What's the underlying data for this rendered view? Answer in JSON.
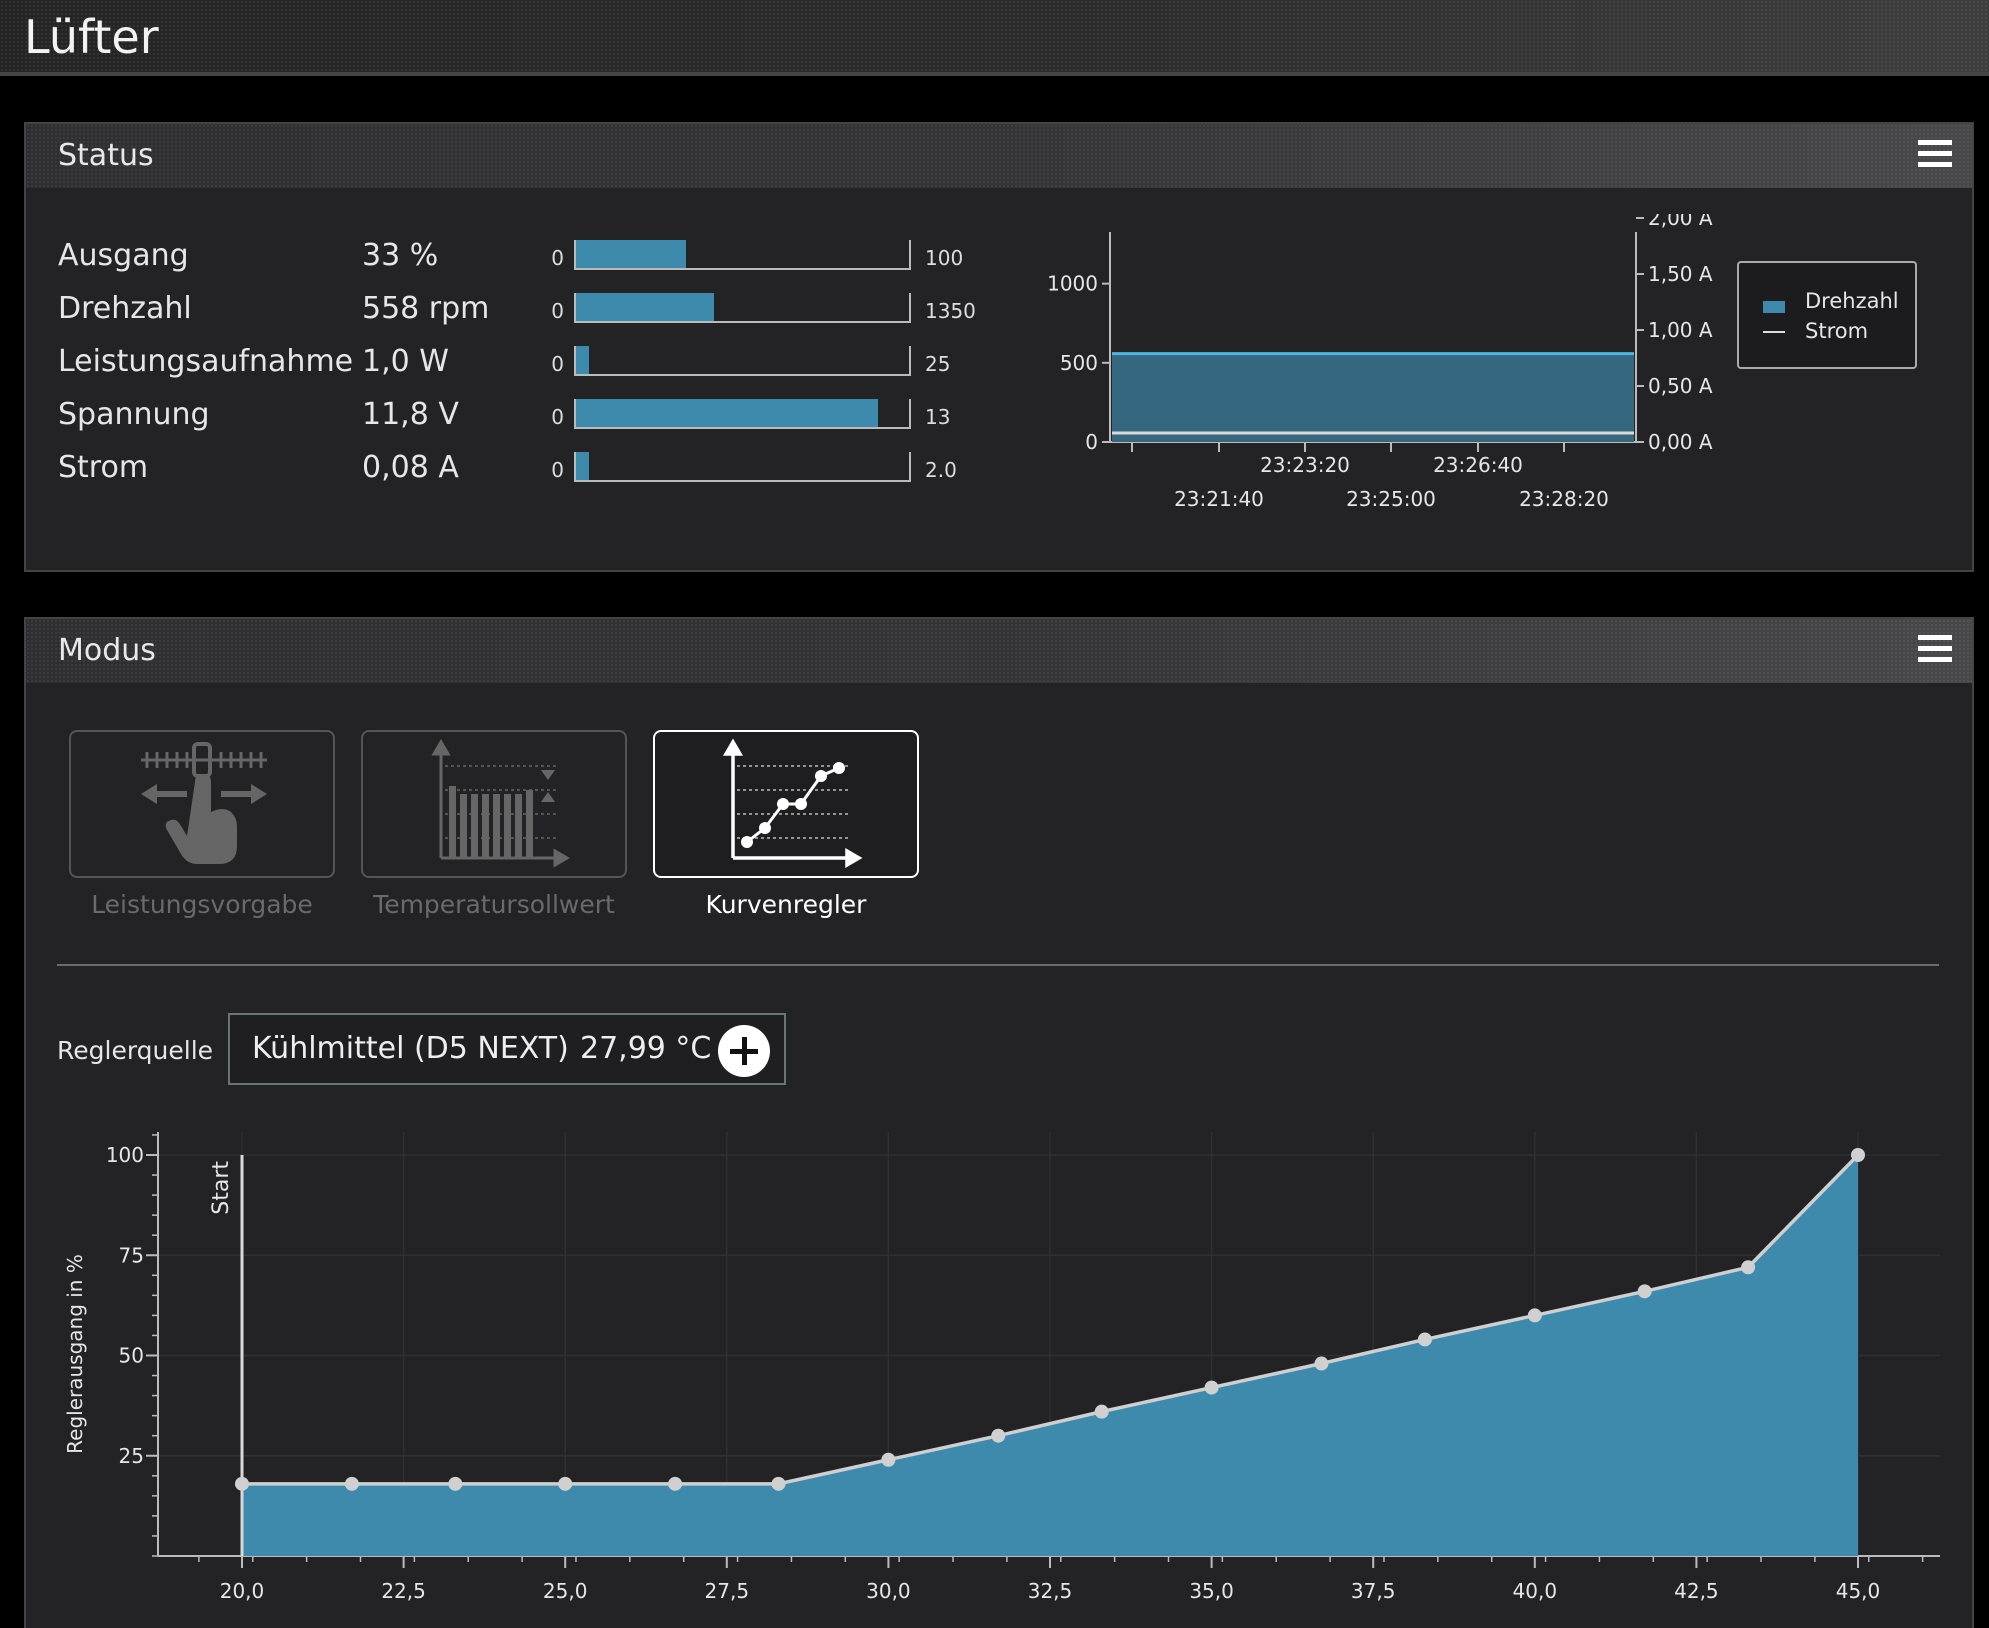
{
  "app": {
    "title": "Lüfter"
  },
  "status": {
    "title": "Status",
    "rows": [
      {
        "label": "Ausgang",
        "value": "33 %",
        "min": "0",
        "max": "100",
        "fraction": 0.33
      },
      {
        "label": "Drehzahl",
        "value": "558 rpm",
        "min": "0",
        "max": "1350",
        "fraction": 0.413
      },
      {
        "label": "Leistungsaufnahme",
        "value": "1,0 W",
        "min": "0",
        "max": "25",
        "fraction": 0.04
      },
      {
        "label": "Spannung",
        "value": "11,8 V",
        "min": "0",
        "max": "13",
        "fraction": 0.908
      },
      {
        "label": "Strom",
        "value": "0,08 A",
        "min": "0",
        "max": "2.0",
        "fraction": 0.04
      }
    ],
    "legend": {
      "series1": "Drehzahl",
      "series2": "Strom"
    },
    "colors": {
      "rpm_fill": "#35677f",
      "rpm_line": "#4fb4e0",
      "current_line": "#d9d9d9"
    }
  },
  "modus": {
    "title": "Modus",
    "tiles": [
      {
        "label": "Leistungsvorgabe",
        "icon": "hand-slider-icon",
        "active": false
      },
      {
        "label": "Temperatursollwert",
        "icon": "bar-chart-setpoint-icon",
        "active": false
      },
      {
        "label": "Kurvenregler",
        "icon": "curve-chart-icon",
        "active": true
      }
    ],
    "source": {
      "label": "Reglerquelle",
      "name": "Kühlmittel (D5 NEXT)",
      "temperature": "27,99 °C",
      "add_icon": "plus-circle-icon"
    }
  },
  "chart_data": [
    {
      "type": "area",
      "series": [
        {
          "name": "Drehzahl",
          "y_axis": "left",
          "values_flat": 558
        },
        {
          "name": "Strom",
          "y_axis": "right",
          "values_flat": 0.08
        }
      ],
      "x_tick_labels": [
        "23:21:40",
        "23:23:20",
        "23:25:00",
        "23:26:40",
        "23:28:20"
      ],
      "y_left_ticks": [
        "0",
        "500",
        "1000"
      ],
      "y_left_range": [
        0,
        1350
      ],
      "y_right_ticks": [
        "0,00 A",
        "0,50 A",
        "1,00 A",
        "1,50 A",
        "2,00 A"
      ],
      "y_right_range": [
        0,
        2
      ],
      "legend": "right"
    },
    {
      "type": "area",
      "ylabel": "Reglerausgang in %",
      "xlim": [
        18.5,
        46.2
      ],
      "ylim": [
        0,
        105
      ],
      "x_ticks": [
        "20,0",
        "22,5",
        "25,0",
        "27,5",
        "30,0",
        "32,5",
        "35,0",
        "37,5",
        "40,0",
        "42,5",
        "45,0"
      ],
      "y_ticks": [
        "25",
        "50",
        "75",
        "100"
      ],
      "start_marker": {
        "x": 20.0,
        "label": "Start"
      },
      "points": [
        [
          20.0,
          18
        ],
        [
          21.7,
          18
        ],
        [
          23.3,
          18
        ],
        [
          25.0,
          18
        ],
        [
          26.7,
          18
        ],
        [
          28.3,
          18
        ],
        [
          30.0,
          24
        ],
        [
          31.7,
          30
        ],
        [
          33.3,
          36
        ],
        [
          35.0,
          42
        ],
        [
          36.7,
          48
        ],
        [
          38.3,
          54
        ],
        [
          40.0,
          60
        ],
        [
          41.7,
          66
        ],
        [
          43.3,
          72
        ],
        [
          45.0,
          100
        ]
      ],
      "colors": {
        "fill": "#3d8aac",
        "line": "#cfcfcf",
        "point": "#d0d0d0"
      }
    }
  ]
}
